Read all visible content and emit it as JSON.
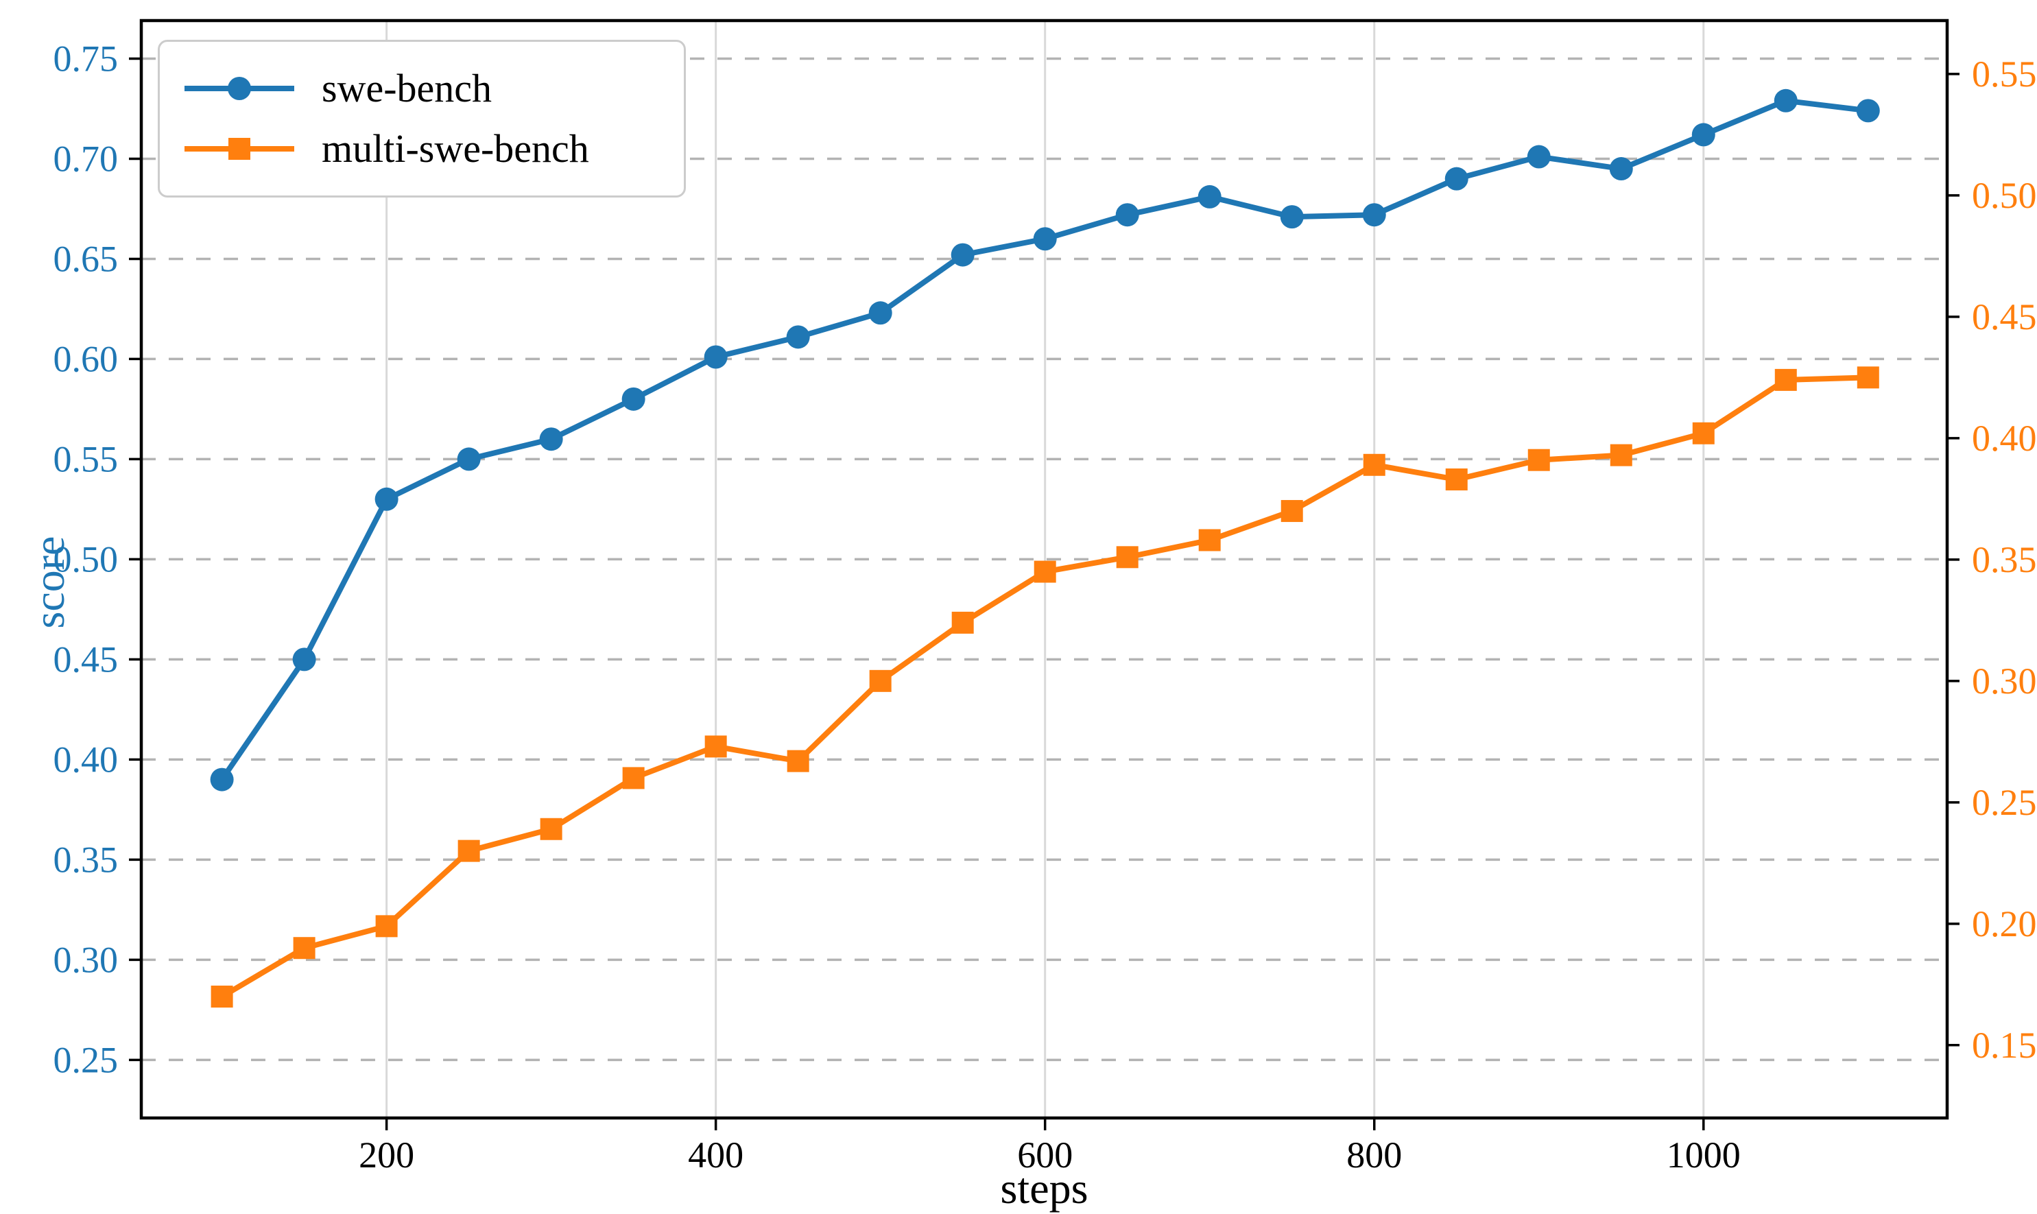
{
  "chart_data": {
    "type": "line",
    "title": "",
    "xlabel": "steps",
    "ylabel": "score",
    "x": [
      100,
      150,
      200,
      250,
      300,
      350,
      400,
      450,
      500,
      550,
      600,
      650,
      700,
      750,
      800,
      850,
      900,
      950,
      1000,
      1050,
      1100
    ],
    "series": [
      {
        "name": "swe-bench",
        "color": "#1f77b4",
        "marker": "circle",
        "axis": "left",
        "values": [
          0.39,
          0.45,
          0.53,
          0.55,
          0.56,
          0.58,
          0.601,
          0.611,
          0.623,
          0.652,
          0.66,
          0.672,
          0.681,
          0.671,
          0.672,
          0.69,
          0.701,
          0.695,
          0.712,
          0.729,
          0.724
        ]
      },
      {
        "name": "multi-swe-bench",
        "color": "#ff7f0e",
        "marker": "square",
        "axis": "right",
        "values": [
          0.17,
          0.19,
          0.199,
          0.23,
          0.239,
          0.26,
          0.273,
          0.267,
          0.3,
          0.324,
          0.345,
          0.351,
          0.358,
          0.37,
          0.389,
          0.383,
          0.391,
          0.393,
          0.402,
          0.424,
          0.425
        ]
      }
    ],
    "axes": {
      "x": {
        "label": "steps",
        "color": "#000000",
        "ticks": [
          200,
          400,
          600,
          800,
          1000
        ],
        "range": [
          51,
          1148
        ]
      },
      "left": {
        "label": "score",
        "color": "#1f77b4",
        "ticks": [
          0.25,
          0.3,
          0.35,
          0.4,
          0.45,
          0.5,
          0.55,
          0.6,
          0.65,
          0.7,
          0.75
        ],
        "range": [
          0.221,
          0.769
        ]
      },
      "right": {
        "label": "",
        "color": "#ff7f0e",
        "ticks": [
          0.15,
          0.2,
          0.25,
          0.3,
          0.35,
          0.4,
          0.45,
          0.5,
          0.55
        ],
        "range": [
          0.12,
          0.572
        ]
      }
    },
    "grid": {
      "horizontal": "dashed",
      "vertical": "solid",
      "h_color": "#b3b3b3",
      "v_color": "#d9d9d9"
    },
    "legend": {
      "position": "upper-left",
      "entries": [
        "swe-bench",
        "multi-swe-bench"
      ]
    },
    "frame_color": "#000000"
  }
}
